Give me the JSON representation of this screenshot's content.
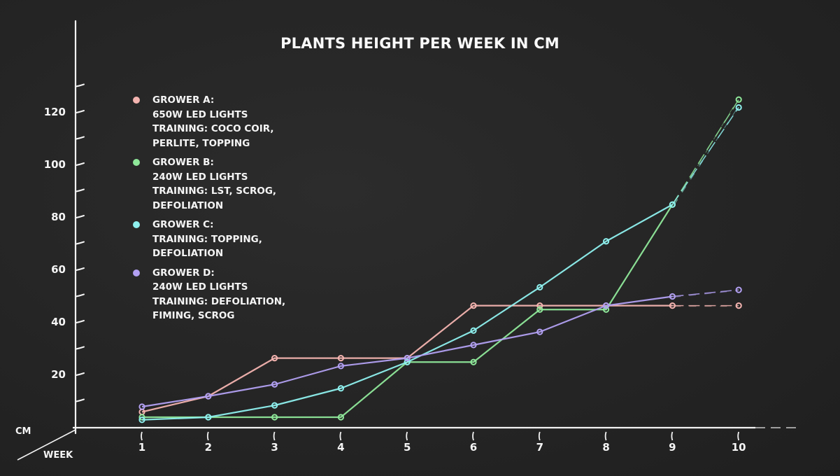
{
  "chart_data": {
    "type": "line",
    "title": "PLANTS HEIGHT PER WEEK IN CM",
    "xlabel": "WEEK",
    "ylabel": "CM",
    "x": [
      1,
      2,
      3,
      4,
      5,
      6,
      7,
      8,
      9,
      10
    ],
    "x_tick_labels": [
      "1",
      "2",
      "3",
      "4",
      "5",
      "6",
      "7",
      "8",
      "9",
      "10"
    ],
    "y_tick_labels": [
      "20",
      "40",
      "60",
      "80",
      "100",
      "120"
    ],
    "y_ticks": [
      20,
      40,
      60,
      80,
      100,
      120
    ],
    "ylim": [
      0,
      130
    ],
    "grid": false,
    "legend_position": "upper-left",
    "projection_note": "segment from week 9 to week 10 drawn dashed",
    "series": [
      {
        "name": "GROWER A",
        "legend_lines": [
          "GROWER A:",
          "650W LED LIGHTS",
          "TRAINING: COCO COIR,",
          "PERLITE, TOPPING"
        ],
        "color": "#f4b4b0",
        "values": [
          6,
          12,
          26.5,
          26.5,
          26.5,
          46.5,
          46.5,
          46.5,
          46.5,
          46.5
        ]
      },
      {
        "name": "GROWER B",
        "legend_lines": [
          "GROWER B:",
          "240W LED LIGHTS",
          "TRAINING: LST, SCROG,",
          "DEFOLIATION"
        ],
        "color": "#8fe89a",
        "values": [
          4,
          4,
          4,
          4,
          25,
          25,
          45,
          45,
          85,
          125
        ]
      },
      {
        "name": "GROWER C",
        "legend_lines": [
          "GROWER C:",
          "TRAINING: TOPPING,",
          "DEFOLIATION"
        ],
        "color": "#8ef0ee",
        "values": [
          3,
          4,
          8.5,
          15,
          25,
          37,
          53.5,
          71,
          85,
          122
        ]
      },
      {
        "name": "GROWER D",
        "legend_lines": [
          "GROWER D:",
          "240W LED LIGHTS",
          "TRAINING: DEFOLIATION,",
          "FIMING, SCROG"
        ],
        "color": "#b2a0f2",
        "values": [
          8,
          12,
          16.5,
          23.5,
          26.5,
          31.5,
          36.5,
          46.5,
          50,
          52.5
        ]
      }
    ]
  },
  "axis_color": "#f2f2f2",
  "background_color": "#252525"
}
